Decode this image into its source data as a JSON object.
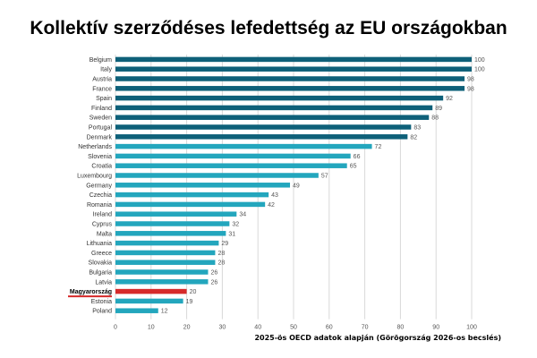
{
  "title": "Kollektív szerződéses lefedettség az EU országokban",
  "source_note": "2025-ös OECD adatok alapján (Görögország 2026-os becslés)",
  "colors": {
    "dark": "#0e6079",
    "light": "#23a6bd",
    "highlight": "#d62a2a",
    "grid": "#d9d9d9",
    "text": "#555555"
  },
  "chart_data": {
    "type": "bar",
    "orientation": "horizontal",
    "title": "Kollektív szerződéses lefedettség az EU országokban",
    "categories": [
      "Belgium",
      "Italy",
      "Austria",
      "France",
      "Spain",
      "Finland",
      "Sweden",
      "Portugal",
      "Denmark",
      "Netherlands",
      "Slovenia",
      "Croatia",
      "Luxembourg",
      "Germany",
      "Czechia",
      "Romania",
      "Ireland",
      "Cyprus",
      "Malta",
      "Lithuania",
      "Greece",
      "Slovakia",
      "Bulgaria",
      "Latvia",
      "Magyarország",
      "Estonia",
      "Poland"
    ],
    "values": [
      100,
      100,
      98,
      98,
      92,
      89,
      88,
      83,
      82,
      72,
      66,
      65,
      57,
      49,
      43,
      42,
      34,
      32,
      31,
      29,
      28,
      28,
      26,
      26,
      20,
      19,
      12
    ],
    "groups": [
      "dark",
      "dark",
      "dark",
      "dark",
      "dark",
      "dark",
      "dark",
      "dark",
      "dark",
      "light",
      "light",
      "light",
      "light",
      "light",
      "light",
      "light",
      "light",
      "light",
      "light",
      "light",
      "light",
      "light",
      "light",
      "light",
      "highlight",
      "light",
      "light"
    ],
    "highlight_category": "Magyarország",
    "xlim": [
      0,
      100
    ],
    "xticks": [
      0,
      10,
      20,
      30,
      40,
      50,
      60,
      70,
      80,
      90,
      100
    ],
    "grid": true,
    "legend": "none"
  }
}
